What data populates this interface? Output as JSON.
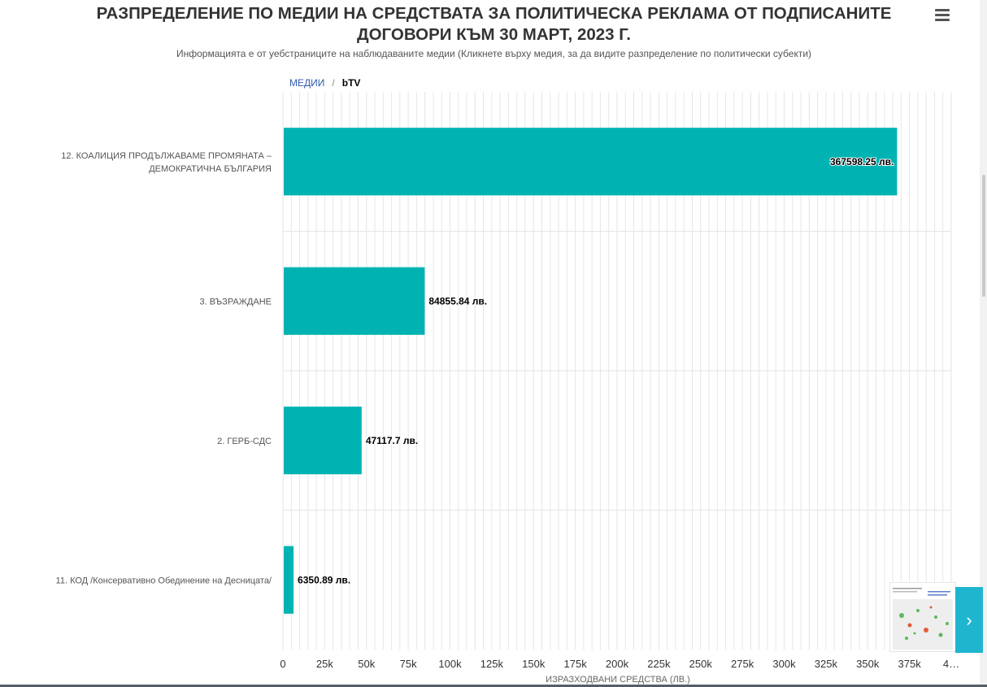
{
  "header": {
    "title_line1": "РАЗПРЕДЕЛЕНИЕ ПО МЕДИИ НА СРЕДСТВАТА ЗА ПОЛИТИЧЕСКА РЕКЛАМА ОТ ПОДПИСАНИТЕ",
    "title_line2": "ДОГОВОРИ КЪМ 30 МАРТ, 2023 Г.",
    "subtitle": "Информацията е от уебстраниците на наблюдаваните медии (Кликнете върху медия, за да видите разпределение по политически субекти)",
    "menu_icon": "hamburger-icon"
  },
  "breadcrumb": {
    "root": "МЕДИИ",
    "separator": "/",
    "current": "bTV"
  },
  "navigation": {
    "next_icon": "chevron-right-icon",
    "next_glyph": "›"
  },
  "chart_data": {
    "type": "bar",
    "orientation": "horizontal",
    "categories": [
      [
        "12. КОАЛИЦИЯ ПРОДЪЛЖАВАМЕ ПРОМЯНАТА –",
        "ДЕМОКРАТИЧНА БЪЛГАРИЯ"
      ],
      [
        "3. ВЪЗРАЖДАНЕ"
      ],
      [
        "2. ГЕРБ-СДС"
      ],
      [
        "11. КОД /Консервативно Обединение на Десницата/"
      ]
    ],
    "values": [
      367598.25,
      84855.84,
      47117.7,
      6350.89
    ],
    "data_labels": [
      "367598.25 лв.",
      "84855.84 лв.",
      "47117.7 лв.",
      "6350.89 лв."
    ],
    "xlabel": "ИЗРАЗХОДВАНИ СРЕДСТВА (ЛВ.)",
    "ylabel": "",
    "xlim": [
      0,
      400000
    ],
    "tick_step": 25000,
    "tick_labels": [
      "0",
      "25k",
      "50k",
      "75k",
      "100k",
      "125k",
      "150k",
      "175k",
      "200k",
      "225k",
      "250k",
      "275k",
      "300k",
      "325k",
      "350k",
      "375k",
      "4…"
    ],
    "minor_grid_step": 5000,
    "grid": true,
    "bar_color": "#00b3b3",
    "gridline_color": "#e6e6e6"
  }
}
